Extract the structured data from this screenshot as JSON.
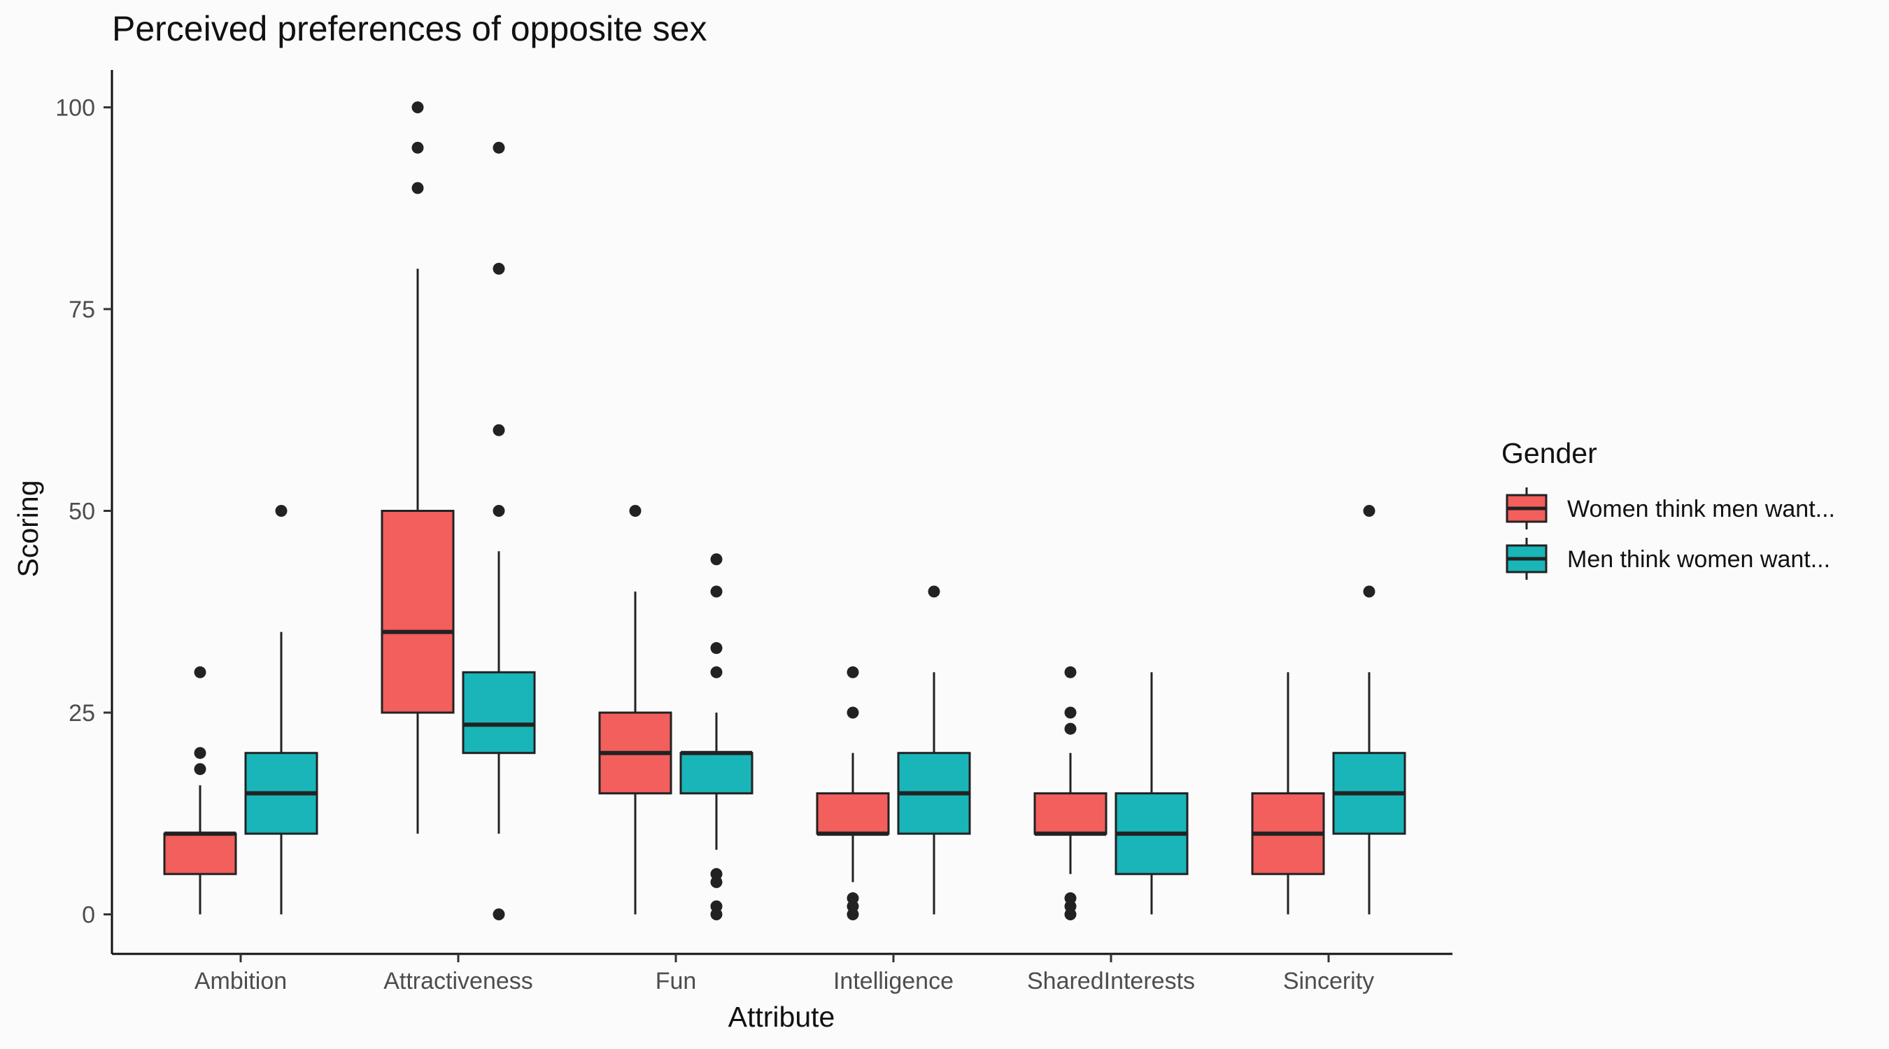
{
  "chart_data": {
    "type": "boxplot",
    "title": "Perceived preferences of opposite sex",
    "xlabel": "Attribute",
    "ylabel": "Scoring",
    "ylim": [
      -5,
      105
    ],
    "yticks": [
      0,
      25,
      50,
      75,
      100
    ],
    "grid": false,
    "legend": {
      "title": "Gender",
      "placement": "right"
    },
    "categories": [
      "Ambition",
      "Attractiveness",
      "Fun",
      "Intelligence",
      "SharedInterests",
      "Sincerity"
    ],
    "series": [
      {
        "name": "Women think men want...",
        "color": "#f25f5c",
        "boxes": [
          {
            "whisker_low": 0,
            "q1": 5,
            "median": 10,
            "q3": 10,
            "whisker_high": 16,
            "outliers": [
              18,
              20,
              30
            ]
          },
          {
            "whisker_low": 10,
            "q1": 25,
            "median": 35,
            "q3": 50,
            "whisker_high": 80,
            "outliers": [
              90,
              95,
              100
            ]
          },
          {
            "whisker_low": 0,
            "q1": 15,
            "median": 20,
            "q3": 25,
            "whisker_high": 40,
            "outliers": [
              50
            ]
          },
          {
            "whisker_low": 4,
            "q1": 10,
            "median": 10,
            "q3": 15,
            "whisker_high": 20,
            "outliers": [
              0,
              1,
              2,
              25,
              30
            ]
          },
          {
            "whisker_low": 5,
            "q1": 10,
            "median": 10,
            "q3": 15,
            "whisker_high": 20,
            "outliers": [
              0,
              1,
              2,
              23,
              25,
              30
            ]
          },
          {
            "whisker_low": 0,
            "q1": 5,
            "median": 10,
            "q3": 15,
            "whisker_high": 30,
            "outliers": []
          }
        ]
      },
      {
        "name": "Men think women want...",
        "color": "#19b5b9",
        "boxes": [
          {
            "whisker_low": 0,
            "q1": 10,
            "median": 15,
            "q3": 20,
            "whisker_high": 35,
            "outliers": [
              50
            ]
          },
          {
            "whisker_low": 10,
            "q1": 20,
            "median": 23.5,
            "q3": 30,
            "whisker_high": 45,
            "outliers": [
              0,
              50,
              60,
              80,
              95
            ]
          },
          {
            "whisker_low": 8,
            "q1": 15,
            "median": 20,
            "q3": 20,
            "whisker_high": 25,
            "outliers": [
              0,
              1,
              4,
              5,
              30,
              33,
              40,
              44
            ]
          },
          {
            "whisker_low": 0,
            "q1": 10,
            "median": 15,
            "q3": 20,
            "whisker_high": 30,
            "outliers": [
              40
            ]
          },
          {
            "whisker_low": 0,
            "q1": 5,
            "median": 10,
            "q3": 15,
            "whisker_high": 30,
            "outliers": []
          },
          {
            "whisker_low": 0,
            "q1": 10,
            "median": 15,
            "q3": 20,
            "whisker_high": 30,
            "outliers": [
              40,
              50
            ]
          }
        ]
      }
    ]
  }
}
